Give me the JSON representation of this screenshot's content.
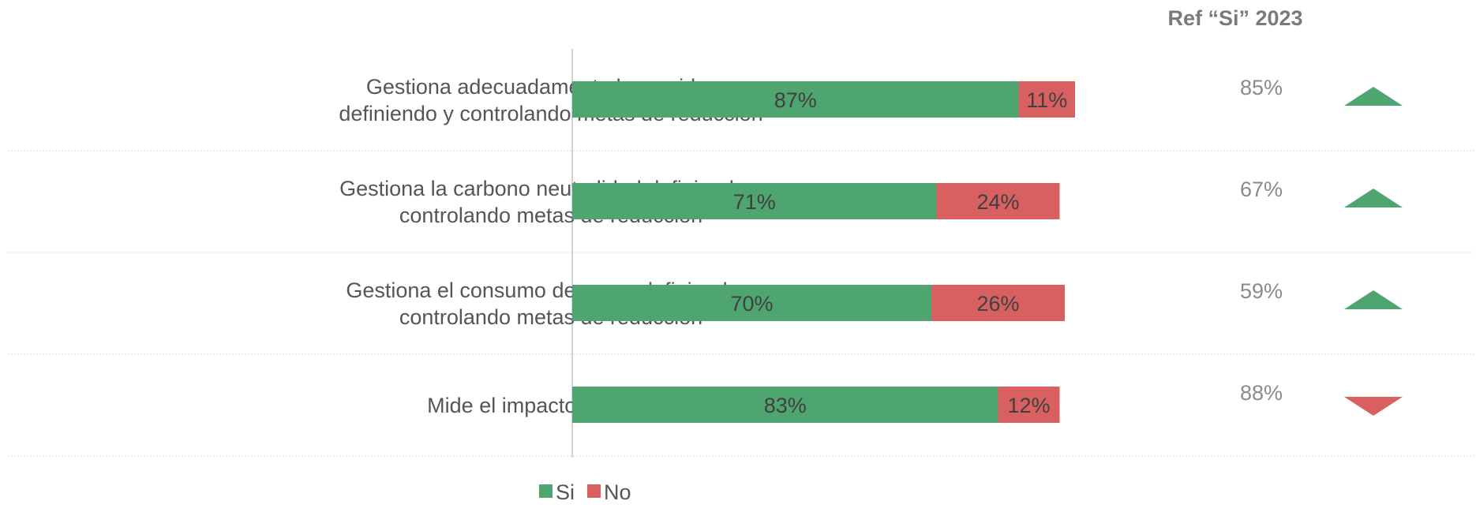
{
  "chart_data": {
    "type": "bar",
    "orientation": "horizontal",
    "stacked": true,
    "categories": [
      [
        "Gestiona adecuadamente los residuos,",
        "definiendo y controlando metas de reducción"
      ],
      [
        "Gestiona la carbono neutralidad definiendo y",
        "controlando metas de reducción"
      ],
      [
        "Gestiona el consumo de agua, definiendo y",
        "controlando metas de reducción"
      ],
      [
        "Mide el impacto ambiental"
      ]
    ],
    "series": [
      {
        "name": "Si",
        "color": "#4ea56f",
        "values": [
          87,
          71,
          70,
          83
        ],
        "labels": [
          "87%",
          "71%",
          "70%",
          "83%"
        ]
      },
      {
        "name": "No",
        "color": "#d96060",
        "values": [
          11,
          24,
          26,
          12
        ],
        "labels": [
          "11%",
          "24%",
          "26%",
          "12%"
        ]
      }
    ],
    "xlim": [
      0,
      100
    ],
    "legend": "bottom",
    "reference": {
      "header": "Ref “Si” 2023",
      "values": [
        85,
        67,
        59,
        88
      ],
      "labels": [
        "85%",
        "67%",
        "59%",
        "88%"
      ],
      "trend": [
        "up",
        "up",
        "up",
        "down"
      ],
      "up_color": "#4ea56f",
      "down_color": "#d96060"
    }
  }
}
